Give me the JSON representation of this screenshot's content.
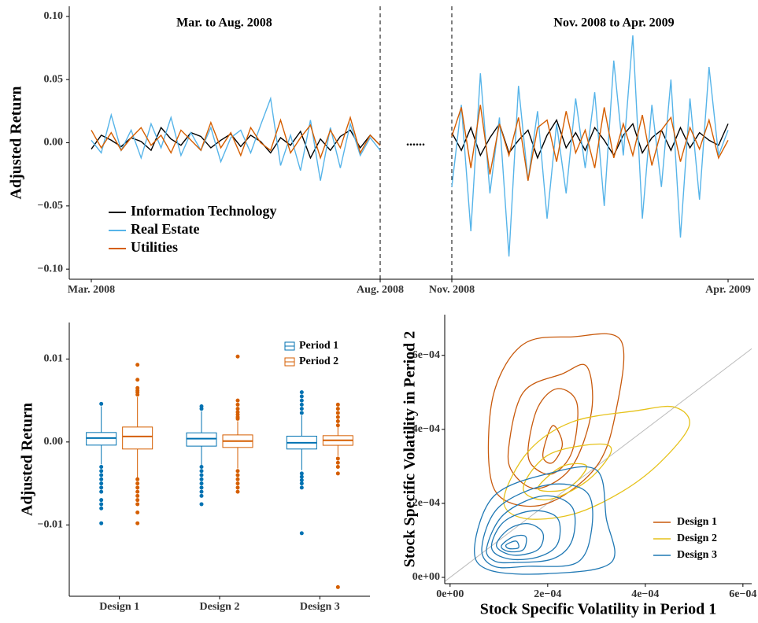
{
  "chart_data": [
    {
      "type": "line",
      "title": "Mar. to Aug. 2008",
      "y_label": "Adjusted Return",
      "annotation": "......",
      "categories": [
        "Mar. 2008",
        null,
        null,
        null,
        null,
        null,
        null,
        null,
        null,
        null,
        null,
        null,
        null,
        null,
        null,
        null,
        null,
        null,
        null,
        null,
        null,
        null,
        null,
        null,
        null,
        null,
        null,
        null,
        null,
        "Aug. 2008"
      ],
      "ylim": [
        -0.108,
        0.108
      ],
      "yticks": [
        {
          "value": -0.1,
          "label": "−0.10"
        },
        {
          "value": -0.05,
          "label": "−0.05"
        },
        {
          "value": 0,
          "label": "0.00"
        },
        0.05,
        {
          "value": 0.1,
          "label": "0.10"
        }
      ],
      "series": [
        {
          "name": "Information Technology",
          "color": "#000000",
          "values": [
            -0.005,
            0.006,
            0.002,
            -0.003,
            0.004,
            0.001,
            -0.006,
            0.012,
            0.003,
            -0.002,
            0.008,
            0.005,
            -0.004,
            0.002,
            0.007,
            -0.003,
            0.006,
            0.001,
            -0.008,
            0.004,
            -0.002,
            0.009,
            -0.012,
            0.003,
            -0.006,
            0.005,
            0.01,
            -0.004,
            0.006,
            -0.002
          ]
        },
        {
          "name": "Real Estate",
          "color": "#56b4e9",
          "values": [
            0.002,
            -0.008,
            0.022,
            -0.006,
            0.01,
            -0.012,
            0.015,
            -0.004,
            0.02,
            -0.01,
            0.008,
            -0.006,
            0.012,
            -0.015,
            0.004,
            0.01,
            -0.008,
            0.014,
            0.035,
            -0.018,
            0.006,
            -0.022,
            0.018,
            -0.03,
            0.012,
            -0.02,
            0.015,
            -0.01,
            0.004,
            -0.006
          ]
        },
        {
          "name": "Utilities",
          "color": "#d55e00",
          "values": [
            0.01,
            -0.004,
            0.008,
            -0.006,
            0.004,
            0.012,
            -0.002,
            0.006,
            -0.008,
            0.01,
            0.002,
            -0.006,
            0.016,
            -0.004,
            0.008,
            -0.01,
            0.012,
            0.0,
            -0.006,
            0.018,
            -0.008,
            0.004,
            0.014,
            -0.012,
            0.01,
            -0.004,
            0.02,
            -0.008,
            0.006,
            -0.002
          ]
        }
      ]
    },
    {
      "type": "line",
      "title": "Nov. 2008 to Apr. 2009",
      "categories": [
        "Nov. 2008",
        null,
        null,
        null,
        null,
        null,
        null,
        null,
        null,
        null,
        null,
        null,
        null,
        null,
        null,
        null,
        null,
        null,
        null,
        null,
        null,
        null,
        null,
        null,
        null,
        null,
        null,
        null,
        null,
        "Apr. 2009"
      ],
      "ylim": [
        -0.108,
        0.108
      ],
      "series": [
        {
          "color": "#000000",
          "values": [
            0.008,
            -0.006,
            0.012,
            -0.01,
            0.004,
            0.015,
            -0.008,
            0.002,
            0.01,
            -0.012,
            0.006,
            0.018,
            -0.004,
            0.008,
            -0.006,
            0.012,
            0.002,
            -0.01,
            0.006,
            0.015,
            -0.008,
            0.004,
            0.01,
            -0.006,
            0.012,
            -0.004,
            0.008,
            0.002,
            -0.002,
            0.015
          ]
        },
        {
          "color": "#56b4e9",
          "values": [
            -0.035,
            0.03,
            -0.07,
            0.055,
            -0.04,
            0.02,
            -0.09,
            0.045,
            -0.03,
            0.025,
            -0.06,
            0.015,
            -0.04,
            0.035,
            -0.02,
            0.04,
            -0.05,
            0.065,
            -0.01,
            0.085,
            -0.06,
            0.03,
            -0.035,
            0.05,
            -0.075,
            0.035,
            -0.045,
            0.06,
            -0.01,
            0.01
          ]
        },
        {
          "color": "#d55e00",
          "values": [
            0.005,
            0.028,
            -0.02,
            0.03,
            -0.025,
            0.015,
            -0.01,
            0.02,
            -0.03,
            0.012,
            0.018,
            -0.015,
            0.025,
            -0.008,
            0.01,
            -0.02,
            0.028,
            -0.012,
            0.015,
            -0.01,
            0.022,
            -0.018,
            0.01,
            0.02,
            -0.015,
            0.012,
            -0.005,
            0.018,
            -0.012,
            0.002
          ]
        }
      ]
    },
    {
      "type": "box",
      "y_label": "Adjusted Return",
      "categories": [
        "Design 1",
        "Design 2",
        "Design 3"
      ],
      "ylim": [
        -0.0186,
        0.0144
      ],
      "yticks": [
        {
          "value": -0.01,
          "label": "−0.01"
        },
        {
          "value": 0,
          "label": "0.00"
        },
        0.01
      ],
      "series": [
        {
          "name": "Period 1",
          "color": "#0072b2",
          "values": [
            {
              "min": -0.0027,
              "q1": -0.00038,
              "median": 0.00047,
              "q3": 0.00114,
              "max": 0.0043,
              "outliers": [
                0.0046,
                -0.003,
                -0.0035,
                -0.004,
                -0.0045,
                -0.005,
                -0.0055,
                -0.006,
                -0.007,
                -0.0075,
                -0.008,
                -0.0098
              ]
            },
            {
              "min": -0.0028,
              "q1": -0.0005,
              "median": 0.0004,
              "q3": 0.0011,
              "max": 0.0037,
              "outliers": [
                0.004,
                0.0043,
                -0.003,
                -0.0035,
                -0.004,
                -0.0045,
                -0.005,
                -0.0055,
                -0.006,
                -0.0065,
                -0.0075
              ]
            },
            {
              "min": -0.0034,
              "q1": -0.00085,
              "median": -0.0001,
              "q3": 0.0007,
              "max": 0.0032,
              "outliers": [
                0.0035,
                0.004,
                0.0045,
                0.005,
                0.0055,
                0.006,
                -0.0038,
                -0.0042,
                -0.0046,
                -0.005,
                -0.0055,
                -0.011
              ]
            }
          ]
        },
        {
          "name": "Period 2",
          "color": "#d55e00",
          "values": [
            {
              "min": -0.0043,
              "q1": -0.00085,
              "median": 0.00066,
              "q3": 0.0018,
              "max": 0.0054,
              "outliers": [
                0.0057,
                0.006,
                0.0062,
                0.0065,
                0.0075,
                0.0093,
                -0.0045,
                -0.005,
                -0.0055,
                -0.006,
                -0.0065,
                -0.007,
                -0.0075,
                -0.0085,
                -0.0098
              ]
            },
            {
              "min": -0.0032,
              "q1": -0.00066,
              "median": 0.0001,
              "q3": 0.00085,
              "max": 0.0025,
              "outliers": [
                0.0028,
                0.003,
                0.0033,
                0.0036,
                0.004,
                0.0045,
                0.005,
                0.0103,
                -0.0035,
                -0.004,
                -0.0045,
                -0.005,
                -0.0055,
                -0.006
              ]
            },
            {
              "min": -0.0017,
              "q1": -0.0004,
              "median": 0.0002,
              "q3": 0.00076,
              "max": 0.0018,
              "outliers": [
                0.002,
                0.0025,
                0.003,
                0.0035,
                0.004,
                0.0045,
                -0.002,
                -0.0025,
                -0.003,
                -0.0038,
                -0.0175
              ]
            }
          ]
        }
      ]
    },
    {
      "type": "contour",
      "x_label": "Stock Specific Volatility in Period 1",
      "y_label": "Stock Specific Volatility in Period 2",
      "xlim": [
        -1.1e-05,
        0.000618
      ],
      "ylim": [
        -1.7e-05,
        0.00071
      ],
      "diagonal": true,
      "xticks": [
        {
          "value": 0,
          "label": "0e+00"
        },
        {
          "value": 0.0002,
          "label": "2e−04"
        },
        {
          "value": 0.0004,
          "label": "4e−04"
        },
        {
          "value": 0.0006,
          "label": "6e−04"
        }
      ],
      "yticks": [
        {
          "value": 0,
          "label": "0e+00"
        },
        {
          "value": 0.0002,
          "label": "2e−04"
        },
        {
          "value": 0.0004,
          "label": "4e−04"
        },
        {
          "value": 0.0006,
          "label": "6e−04"
        }
      ],
      "series": [
        {
          "name": "Design 1",
          "color": "#c8590b",
          "levels": [
            {
              "x": [
                8e-05,
                9e-05,
                0.00015,
                0.00025,
                0.00035,
                0.00034,
                0.0003,
                0.0002,
                0.00011
              ],
              "y": [
                0.0003,
                0.0005,
                0.00063,
                0.00065,
                0.00064,
                0.00045,
                0.0003,
                0.0002,
                0.00021
              ]
            },
            {
              "x": [
                0.00012,
                0.00015,
                0.00023,
                0.00028,
                0.00029,
                0.00025,
                0.00018,
                0.00013
              ],
              "y": [
                0.00035,
                0.0005,
                0.00055,
                0.00057,
                0.00045,
                0.0003,
                0.00024,
                0.00028
              ]
            },
            {
              "x": [
                0.00016,
                0.00018,
                0.00022,
                0.00026,
                0.00025,
                0.00021,
                0.00017
              ],
              "y": [
                0.00035,
                0.00046,
                0.00051,
                0.00047,
                0.00034,
                0.00028,
                0.0003
              ]
            },
            {
              "x": [
                0.00019,
                0.00021,
                0.00023,
                0.00021
              ],
              "y": [
                0.00033,
                0.00041,
                0.00036,
                0.00031
              ]
            }
          ]
        },
        {
          "name": "Design 2",
          "color": "#e6c21a",
          "levels": [
            {
              "x": [
                0.00011,
                0.00016,
                0.00025,
                0.00038,
                0.00046,
                0.00049,
                0.00043,
                0.00035,
                0.00025,
                0.00015
              ],
              "y": [
                0.00021,
                0.00034,
                0.00042,
                0.00045,
                0.00046,
                0.00041,
                0.00031,
                0.00023,
                0.00017,
                0.00016
              ]
            },
            {
              "x": [
                0.00015,
                0.0002,
                0.0003,
                0.00033,
                0.00028,
                0.0002
              ],
              "y": [
                0.00024,
                0.00033,
                0.00036,
                0.00034,
                0.00026,
                0.00021
              ]
            },
            {
              "x": [
                0.00018,
                0.00023,
                0.00028,
                0.00024
              ],
              "y": [
                0.00024,
                0.0003,
                0.0003,
                0.00024
              ]
            }
          ]
        },
        {
          "name": "Design 3",
          "color": "#1f78b4",
          "levels": [
            {
              "x": [
                5e-05,
                9e-05,
                0.0002,
                0.0003,
                0.00032,
                0.00033,
                0.0002,
                8e-05
              ],
              "y": [
                8e-05,
                0.00022,
                0.00028,
                0.00029,
                0.00016,
                4e-05,
                1e-05,
                2e-05
              ]
            },
            {
              "x": [
                6.5e-05,
                0.0001,
                0.0002,
                0.00028,
                0.00029,
                0.00026,
                0.00016,
                9e-05
              ],
              "y": [
                8e-05,
                0.00019,
                0.00025,
                0.00023,
                0.00013,
                4e-05,
                3e-05,
                3e-05
              ]
            },
            {
              "x": [
                7.5e-05,
                0.00011,
                0.00019,
                0.00025,
                0.00025,
                0.00021,
                0.00013,
                9e-05
              ],
              "y": [
                8e-05,
                0.00017,
                0.00022,
                0.00019,
                0.0001,
                5e-05,
                4e-05,
                4.5e-05
              ]
            },
            {
              "x": [
                8.5e-05,
                0.00011,
                0.00017,
                0.00022,
                0.00022,
                0.00018,
                0.00012
              ],
              "y": [
                8e-05,
                0.00015,
                0.00018,
                0.00016,
                9e-05,
                5.5e-05,
                5e-05
              ]
            },
            {
              "x": [
                9.5e-05,
                0.00012,
                0.00016,
                0.00019,
                0.00018,
                0.00013
              ],
              "y": [
                8.5e-05,
                0.00013,
                0.000145,
                0.00012,
                7.5e-05,
                6e-05
              ]
            },
            {
              "x": [
                0.000105,
                0.00013,
                0.000155,
                0.00015,
                0.00012
              ],
              "y": [
                8.5e-05,
                0.00011,
                0.00011,
                7.5e-05,
                7e-05
              ]
            },
            {
              "x": [
                0.000115,
                0.000135,
                0.00014,
                0.00012
              ],
              "y": [
                8.8e-05,
                9.8e-05,
                8e-05,
                7.8e-05
              ]
            }
          ]
        }
      ]
    }
  ]
}
